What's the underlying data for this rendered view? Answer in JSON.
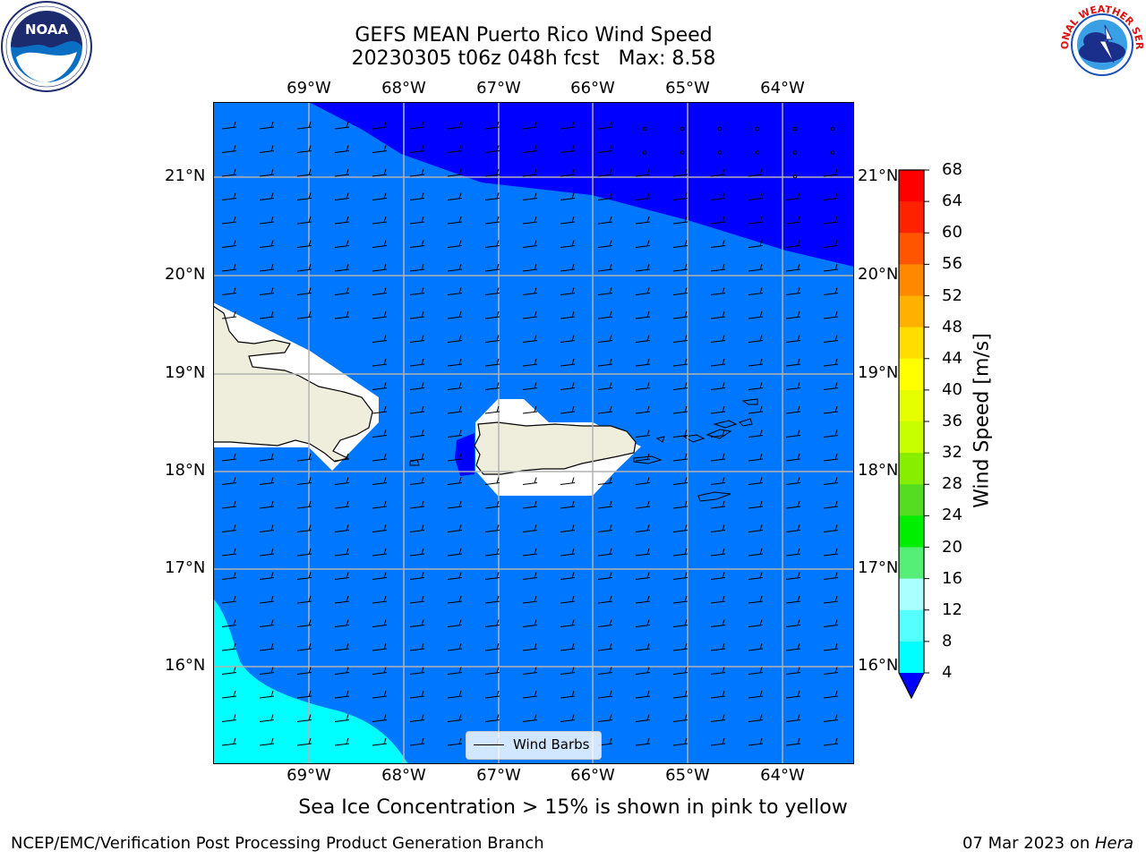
{
  "title": {
    "line1": "GEFS MEAN Puerto Rico Wind Speed",
    "line2": "20230305 t06z 048h fcst   Max: 8.58"
  },
  "logos": {
    "left": {
      "name": "noaa-logo",
      "text": "NOAA"
    },
    "right": {
      "name": "nws-logo",
      "text": "NATIONAL WEATHER SERVICE"
    }
  },
  "map": {
    "lon_labels": [
      "69°W",
      "68°W",
      "67°W",
      "66°W",
      "65°W",
      "64°W"
    ],
    "lat_labels": [
      "21°N",
      "20°N",
      "19°N",
      "18°N",
      "17°N",
      "16°N"
    ],
    "lon_range": [
      -70.0,
      -63.25
    ],
    "lat_range": [
      15.0,
      21.75
    ],
    "shading": {
      "dominant_band": "4-8 m/s",
      "northeast_band": "<4 m/s",
      "southwest_band": "8-12 m/s"
    },
    "barbs": {
      "wind_direction": "easterly",
      "approx_speed_ms": 5
    }
  },
  "legend": {
    "label": "Wind Barbs"
  },
  "colorbar": {
    "title": "Wind Speed [m/s]",
    "levels": [
      68,
      64,
      60,
      56,
      52,
      48,
      44,
      40,
      36,
      32,
      28,
      24,
      20,
      16,
      12,
      8,
      4
    ],
    "colors": [
      "#ff0000",
      "#ff2200",
      "#ff5500",
      "#ff8800",
      "#ffb000",
      "#ffdd00",
      "#ffff00",
      "#e6ff00",
      "#c8ff00",
      "#88ee00",
      "#55dd22",
      "#00ee00",
      "#55ee77",
      "#aaffff",
      "#55ffff",
      "#00ffff",
      "#0077ff"
    ],
    "under_color": "#0000ff"
  },
  "footer": {
    "ice_note": "Sea Ice Concentration > 15% is shown in pink to yellow",
    "left": "NCEP/EMC/Verification Post Processing Product Generation Branch",
    "right_date": "07 Mar 2023 on ",
    "right_machine": "Hera"
  }
}
